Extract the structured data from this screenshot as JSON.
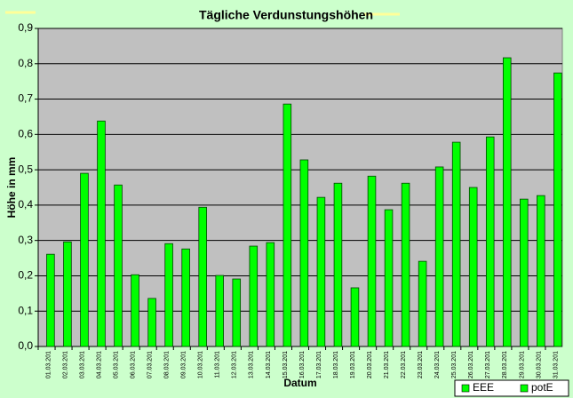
{
  "chart_data": {
    "type": "bar",
    "title": "Tägliche Verdunstungshöhen",
    "x_label": "Datum",
    "y_label": "Höhe in mm",
    "categories": [
      "01.03.201",
      "02.03.201",
      "03.03.201",
      "04.03.201",
      "05.03.201",
      "06.03.201",
      "07.03.201",
      "08.03.201",
      "09.03.201",
      "10.03.201",
      "11.03.201",
      "12.03.201",
      "13.03.201",
      "14.03.201",
      "15.03.201",
      "16.03.201",
      "17.03.201",
      "18.03.201",
      "19.03.201",
      "20.03.201",
      "21.03.201",
      "22.03.201",
      "23.03.201",
      "24.03.201",
      "25.03.201",
      "26.03.201",
      "27.03.201",
      "28.03.201",
      "29.03.201",
      "30.03.201",
      "31.03.201"
    ],
    "series": [
      {
        "name": "EEE",
        "color": "#00ff00",
        "values": [
          null,
          null,
          null,
          null,
          null,
          null,
          null,
          null,
          null,
          null,
          null,
          null,
          null,
          null,
          null,
          null,
          null,
          null,
          null,
          null,
          null,
          null,
          null,
          null,
          null,
          null,
          null,
          null,
          null,
          null,
          null
        ]
      },
      {
        "name": "potE",
        "color": "#00ff00",
        "values": [
          0.261,
          0.296,
          0.49,
          0.638,
          0.457,
          0.203,
          0.136,
          0.291,
          0.276,
          0.394,
          0.201,
          0.191,
          0.284,
          0.294,
          0.686,
          0.528,
          0.422,
          0.462,
          0.166,
          0.482,
          0.387,
          0.462,
          0.241,
          0.508,
          0.578,
          0.45,
          0.593,
          0.817,
          0.417,
          0.427,
          0.774
        ]
      }
    ],
    "ylim": [
      0,
      0.9
    ],
    "yticks": [
      {
        "value": 0,
        "label": "0,0"
      },
      {
        "value": 0.1,
        "label": "0,1"
      },
      {
        "value": 0.2,
        "label": "0,2"
      },
      {
        "value": 0.3,
        "label": "0,3"
      },
      {
        "value": 0.4,
        "label": "0,4"
      },
      {
        "value": 0.5,
        "label": "0,5"
      },
      {
        "value": 0.6,
        "label": "0,6"
      },
      {
        "value": 0.7,
        "label": "0,7"
      },
      {
        "value": 0.8,
        "label": "0,8"
      },
      {
        "value": 0.9,
        "label": "0,9"
      }
    ],
    "grid": true,
    "legend": "lower right"
  }
}
